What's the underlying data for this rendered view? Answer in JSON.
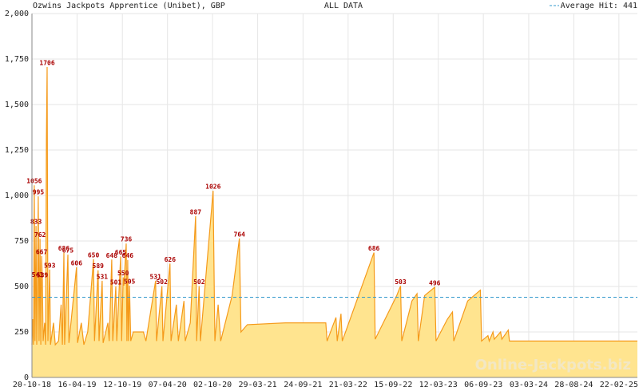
{
  "chart_data": {
    "type": "area",
    "title": "Ozwins Jackpots Apprentice (Unibet), GBP",
    "subtitle": "ALL DATA",
    "watermark": "Online-Jackpots.biz",
    "average": {
      "label": "Average Hit: 441",
      "value": 441,
      "color": "#3399cc"
    },
    "color": "#f59a1a",
    "fill": "#ffe48f",
    "label_color": "#aa0000",
    "grid": true,
    "xlim": [
      0,
      2390
    ],
    "ylim": [
      0,
      2000
    ],
    "yticks": [
      0,
      250,
      500,
      750,
      {
        "value": 1000,
        "label": "1,000"
      },
      {
        "value": 1250,
        "label": "1,250"
      },
      {
        "value": 1500,
        "label": "1,500"
      },
      {
        "value": 1750,
        "label": "1,750"
      },
      {
        "value": 2000,
        "label": "2,000"
      }
    ],
    "xticks": [
      {
        "value": 0,
        "label": "20-10-18"
      },
      {
        "value": 178,
        "label": "16-04-19"
      },
      {
        "value": 357,
        "label": "12-10-19"
      },
      {
        "value": 535,
        "label": "07-04-20"
      },
      {
        "value": 713,
        "label": "02-10-20"
      },
      {
        "value": 891,
        "label": "29-03-21"
      },
      {
        "value": 1070,
        "label": "24-09-21"
      },
      {
        "value": 1248,
        "label": "21-03-22"
      },
      {
        "value": 1426,
        "label": "15-09-22"
      },
      {
        "value": 1604,
        "label": "12-03-23"
      },
      {
        "value": 1782,
        "label": "06-09-23"
      },
      {
        "value": 1961,
        "label": "03-03-24"
      },
      {
        "value": 2139,
        "label": "28-08-24"
      },
      {
        "value": 2317,
        "label": "22-02-25"
      }
    ],
    "x": [
      0,
      3,
      6,
      9,
      12,
      16,
      19,
      22,
      25,
      28,
      32,
      35,
      38,
      41,
      44,
      50,
      54,
      57,
      60,
      63,
      70,
      73,
      85,
      92,
      105,
      115,
      120,
      126,
      129,
      142,
      146,
      176,
      180,
      195,
      205,
      220,
      243,
      247,
      261,
      265,
      277,
      281,
      300,
      305,
      315,
      319,
      331,
      335,
      350,
      354,
      360,
      363,
      372,
      375,
      378,
      381,
      385,
      390,
      400,
      440,
      450,
      488,
      492,
      513,
      517,
      545,
      549,
      570,
      578,
      600,
      605,
      625,
      646,
      650,
      660,
      665,
      715,
      722,
      735,
      745,
      790,
      819,
      825,
      850,
      1000,
      1160,
      1165,
      1200,
      1205,
      1220,
      1225,
      1350,
      1355,
      1440,
      1455,
      1460,
      1500,
      1520,
      1525,
      1550,
      1590,
      1595,
      1640,
      1660,
      1665,
      1720,
      1770,
      1775,
      1800,
      1805,
      1820,
      1825,
      1850,
      1855,
      1880,
      1885,
      2390
    ],
    "values": [
      180,
      320,
      180,
      1056,
      200,
      833,
      180,
      541,
      995,
      200,
      762,
      180,
      667,
      539,
      200,
      300,
      180,
      1300,
      1706,
      200,
      593,
      180,
      300,
      180,
      200,
      400,
      180,
      686,
      180,
      675,
      190,
      606,
      190,
      300,
      180,
      250,
      650,
      200,
      589,
      200,
      531,
      190,
      300,
      200,
      648,
      200,
      501,
      200,
      665,
      200,
      550,
      505,
      736,
      200,
      646,
      200,
      505,
      200,
      250,
      250,
      200,
      531,
      200,
      502,
      200,
      626,
      200,
      400,
      200,
      420,
      200,
      300,
      887,
      200,
      502,
      200,
      1026,
      200,
      400,
      200,
      450,
      764,
      250,
      290,
      300,
      300,
      200,
      330,
      200,
      350,
      200,
      686,
      210,
      450,
      503,
      200,
      420,
      460,
      200,
      450,
      496,
      200,
      320,
      360,
      200,
      420,
      480,
      200,
      230,
      200,
      250,
      210,
      250,
      210,
      260,
      200,
      200
    ],
    "peak_labels": [
      {
        "x": 9,
        "value": 1056
      },
      {
        "x": 16,
        "value": 833
      },
      {
        "x": 22,
        "value": 541
      },
      {
        "x": 25,
        "value": 995
      },
      {
        "x": 32,
        "value": 762
      },
      {
        "x": 38,
        "value": 667
      },
      {
        "x": 41,
        "value": 539
      },
      {
        "x": 60,
        "value": 1706
      },
      {
        "x": 70,
        "value": 593
      },
      {
        "x": 126,
        "value": 686
      },
      {
        "x": 142,
        "value": 675
      },
      {
        "x": 176,
        "value": 606
      },
      {
        "x": 243,
        "value": 650
      },
      {
        "x": 261,
        "value": 589
      },
      {
        "x": 277,
        "value": 531
      },
      {
        "x": 315,
        "value": 648
      },
      {
        "x": 331,
        "value": 501
      },
      {
        "x": 350,
        "value": 665
      },
      {
        "x": 360,
        "value": 550
      },
      {
        "x": 372,
        "value": 736
      },
      {
        "x": 378,
        "value": 646
      },
      {
        "x": 385,
        "value": 505
      },
      {
        "x": 488,
        "value": 531
      },
      {
        "x": 513,
        "value": 502
      },
      {
        "x": 545,
        "value": 626
      },
      {
        "x": 646,
        "value": 887
      },
      {
        "x": 660,
        "value": 502
      },
      {
        "x": 715,
        "value": 1026
      },
      {
        "x": 819,
        "value": 764
      },
      {
        "x": 1350,
        "value": 686
      },
      {
        "x": 1455,
        "value": 503
      },
      {
        "x": 1590,
        "value": 496
      }
    ]
  }
}
